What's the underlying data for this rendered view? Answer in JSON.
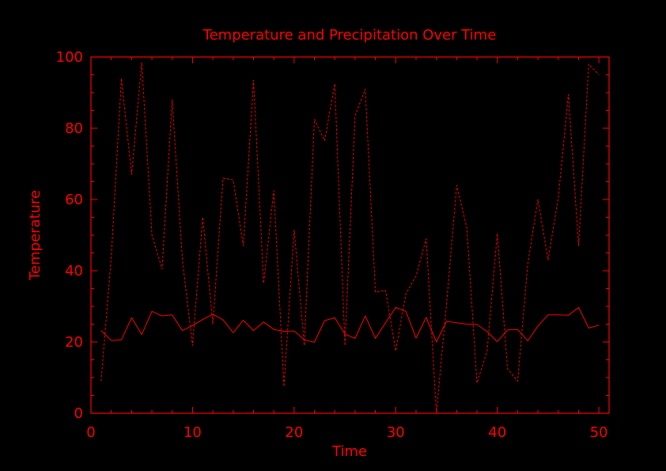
{
  "colors": {
    "background": "#000000",
    "foreground": "#ff0000"
  },
  "chart_data": {
    "type": "line",
    "title": "Temperature and Precipitation Over Time",
    "xlabel": "Time",
    "ylabel": "Temperature",
    "xlim": [
      0,
      51
    ],
    "ylim": [
      0,
      100
    ],
    "xticks": [
      0,
      10,
      20,
      30,
      40,
      50
    ],
    "yticks": [
      0,
      20,
      40,
      60,
      80,
      100
    ],
    "grid": false,
    "x": [
      1,
      2,
      3,
      4,
      5,
      6,
      7,
      8,
      9,
      10,
      11,
      12,
      13,
      14,
      15,
      16,
      17,
      18,
      19,
      20,
      21,
      22,
      23,
      24,
      25,
      26,
      27,
      28,
      29,
      30,
      31,
      32,
      33,
      34,
      35,
      36,
      37,
      38,
      39,
      40,
      41,
      42,
      43,
      44,
      45,
      46,
      47,
      48,
      49,
      50
    ],
    "series": [
      {
        "line_style": "solid",
        "values": [
          23.2,
          20.4,
          20.6,
          26.8,
          22.1,
          28.6,
          27.3,
          27.6,
          23.2,
          24.6,
          26.3,
          27.8,
          26.2,
          22.6,
          26.1,
          23.2,
          25.6,
          23.5,
          23.0,
          23.1,
          20.6,
          19.9,
          26.0,
          26.8,
          22.2,
          21.0,
          27.3,
          21.0,
          25.4,
          29.7,
          28.6,
          21.1,
          26.9,
          20.0,
          25.8,
          25.4,
          25.0,
          24.9,
          22.9,
          20.1,
          23.4,
          23.5,
          20.3,
          24.5,
          27.6,
          27.6,
          27.5,
          29.7,
          23.9,
          24.7
        ]
      },
      {
        "line_style": "dashed",
        "values": [
          9.0,
          44.0,
          94.0,
          67.0,
          98.5,
          50.0,
          40.5,
          88.0,
          43.0,
          19.0,
          55.0,
          25.0,
          66.0,
          65.5,
          47.0,
          93.5,
          36.5,
          62.5,
          7.5,
          51.5,
          19.0,
          82.5,
          76.5,
          92.5,
          19.0,
          83.5,
          91.0,
          34.0,
          34.5,
          17.5,
          33.5,
          38.5,
          49.0,
          0.0,
          30.5,
          64.0,
          52.0,
          8.5,
          17.5,
          50.5,
          12.5,
          9.0,
          42.0,
          60.0,
          43.0,
          60.5,
          89.5,
          47.0,
          98.0,
          95.0
        ]
      }
    ]
  }
}
